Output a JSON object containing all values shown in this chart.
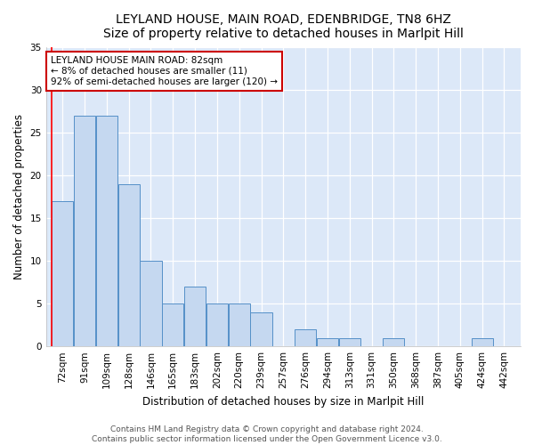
{
  "title1": "LEYLAND HOUSE, MAIN ROAD, EDENBRIDGE, TN8 6HZ",
  "title2": "Size of property relative to detached houses in Marlpit Hill",
  "xlabel": "Distribution of detached houses by size in Marlpit Hill",
  "ylabel": "Number of detached properties",
  "categories": [
    "72sqm",
    "91sqm",
    "109sqm",
    "128sqm",
    "146sqm",
    "165sqm",
    "183sqm",
    "202sqm",
    "220sqm",
    "239sqm",
    "257sqm",
    "276sqm",
    "294sqm",
    "313sqm",
    "331sqm",
    "350sqm",
    "368sqm",
    "387sqm",
    "405sqm",
    "424sqm",
    "442sqm"
  ],
  "values": [
    17,
    27,
    27,
    19,
    10,
    5,
    7,
    5,
    5,
    4,
    0,
    2,
    1,
    1,
    0,
    1,
    0,
    0,
    0,
    1,
    0
  ],
  "bar_color": "#c5d8f0",
  "bar_edge_color": "#5590c8",
  "background_color": "#dce8f8",
  "plot_bg_color": "#dce8f8",
  "grid_color": "#ffffff",
  "annotation_text": "LEYLAND HOUSE MAIN ROAD: 82sqm\n← 8% of detached houses are smaller (11)\n92% of semi-detached houses are larger (120) →",
  "annotation_box_color": "#ffffff",
  "annotation_box_edge": "#cc0000",
  "ylim": [
    0,
    35
  ],
  "yticks": [
    0,
    5,
    10,
    15,
    20,
    25,
    30,
    35
  ],
  "title1_fontsize": 10,
  "title2_fontsize": 9,
  "xlabel_fontsize": 8.5,
  "ylabel_fontsize": 8.5,
  "tick_fontsize": 7.5,
  "annot_fontsize": 7.5,
  "footer1": "Contains HM Land Registry data © Crown copyright and database right 2024.",
  "footer2": "Contains public sector information licensed under the Open Government Licence v3.0.",
  "footer_fontsize": 6.5
}
